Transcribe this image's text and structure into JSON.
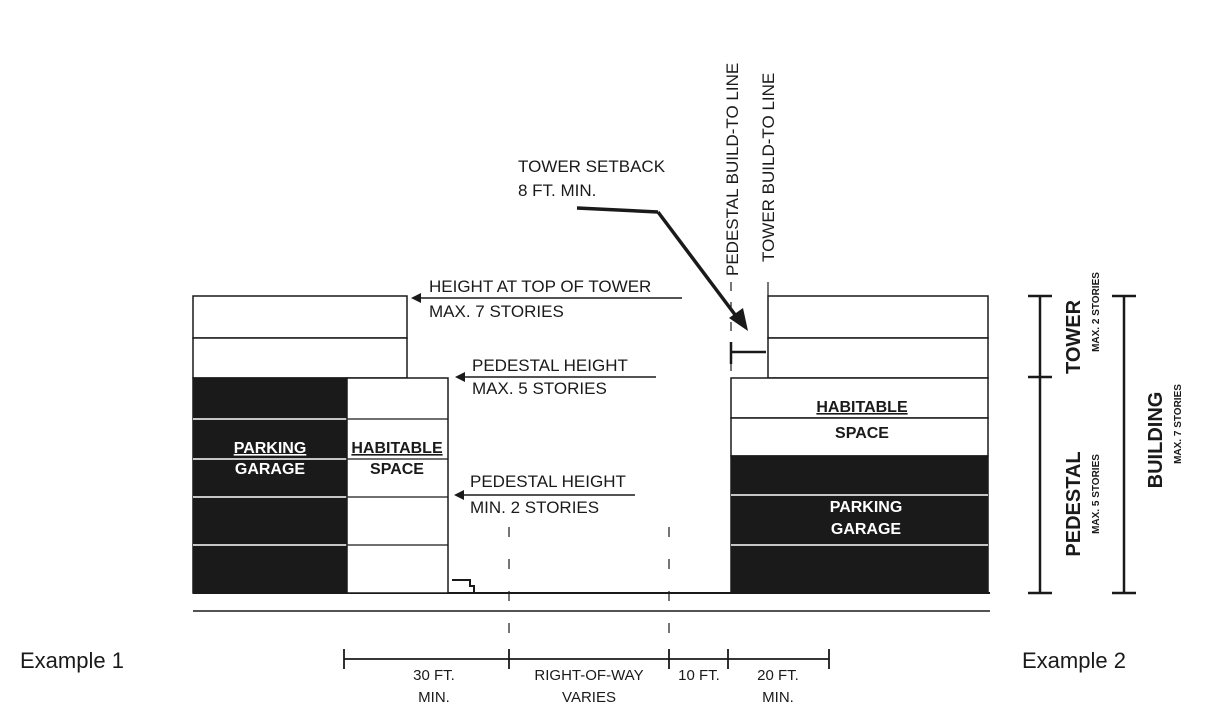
{
  "annotations": {
    "tower_setback_line1": "TOWER SETBACK",
    "tower_setback_line2": "8 FT. MIN.",
    "height_top_tower_line1": "HEIGHT AT TOP OF TOWER",
    "height_top_tower_line2": "MAX. 7 STORIES",
    "pedestal_height_max_line1": "PEDESTAL HEIGHT",
    "pedestal_height_max_line2": "MAX. 5 STORIES",
    "pedestal_height_min_line1": "PEDESTAL HEIGHT",
    "pedestal_height_min_line2": "MIN. 2 STORIES",
    "pedestal_build_to_line": "PEDESTAL BUILD-TO LINE",
    "tower_build_to_line": "TOWER BUILD-TO LINE"
  },
  "example1": {
    "label": "Example 1",
    "parking_line1": "PARKING",
    "parking_line2": "GARAGE",
    "habitable_line1": "HABITABLE",
    "habitable_line2": "SPACE"
  },
  "example2": {
    "label": "Example 2",
    "habitable_line1": "HABITABLE",
    "habitable_line2": "SPACE",
    "parking_line1": "PARKING",
    "parking_line2": "GARAGE"
  },
  "dimensions": {
    "d30_line1": "30 FT.",
    "d30_line2": "MIN.",
    "row_line1": "RIGHT-OF-WAY",
    "row_line2": "VARIES",
    "d10": "10 FT.",
    "d20_line1": "20 FT.",
    "d20_line2": "MIN."
  },
  "side_labels": {
    "tower": "TOWER",
    "tower_sub": "MAX. 2 STORIES",
    "pedestal": "PEDESTAL",
    "pedestal_sub": "MAX. 5 STORIES",
    "building": "BUILDING",
    "building_sub": "MAX. 7 STORIES"
  },
  "colors": {
    "ink": "#1a1a1a",
    "paper": "#ffffff"
  }
}
